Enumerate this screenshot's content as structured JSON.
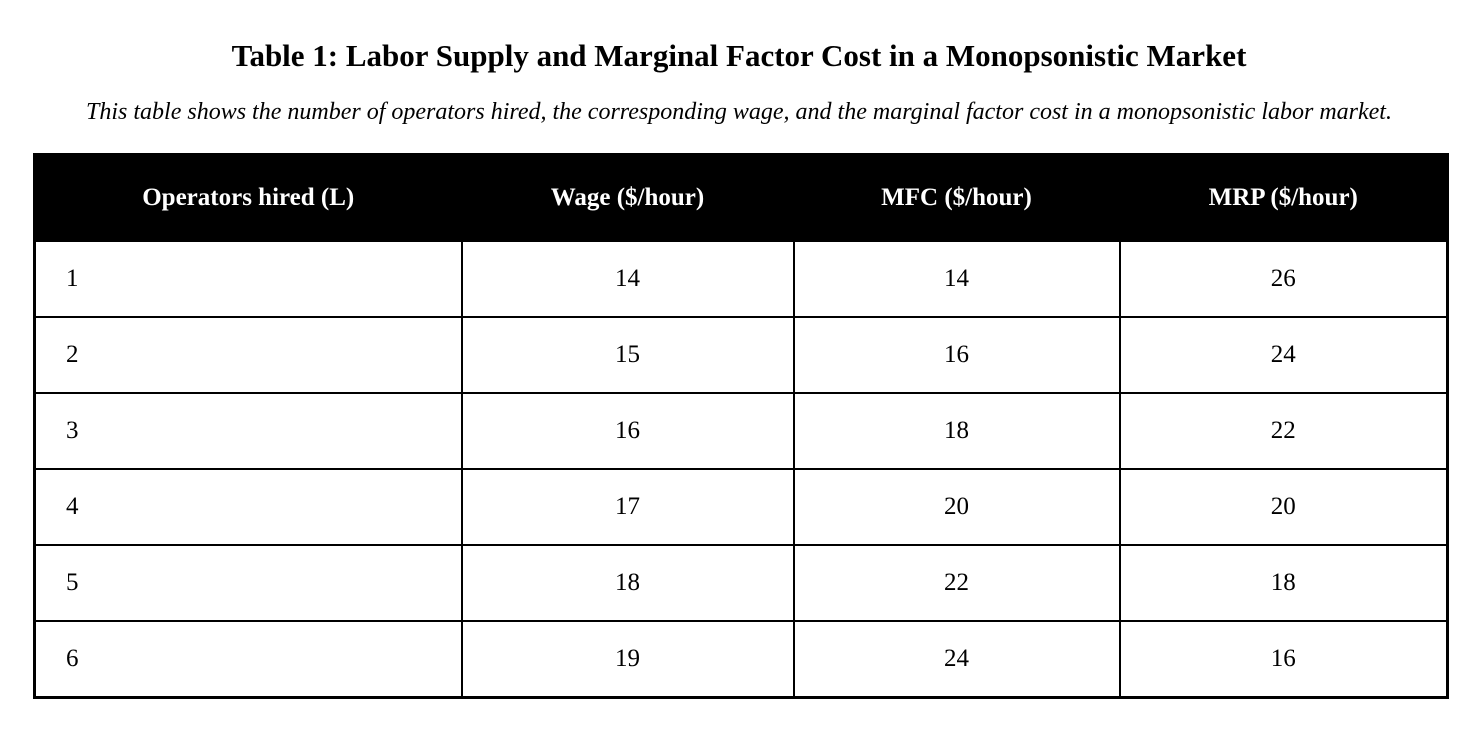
{
  "document": {
    "title": "Table 1: Labor Supply and Marginal Factor Cost in a Monopsonistic Market",
    "caption": "This table shows the number of operators hired, the corresponding wage, and the marginal factor cost in a monopsonistic labor market."
  },
  "table": {
    "headers": [
      "Operators hired (L)",
      "Wage ($/hour)",
      "MFC ($/hour)",
      "MRP ($/hour)"
    ],
    "rows": [
      [
        "1",
        "14",
        "14",
        "26"
      ],
      [
        "2",
        "15",
        "16",
        "24"
      ],
      [
        "3",
        "16",
        "18",
        "22"
      ],
      [
        "4",
        "17",
        "20",
        "20"
      ],
      [
        "5",
        "18",
        "22",
        "18"
      ],
      [
        "6",
        "19",
        "24",
        "16"
      ]
    ]
  },
  "colors": {
    "header_background": "#000000",
    "header_text": "#ffffff",
    "border": "#000000"
  }
}
